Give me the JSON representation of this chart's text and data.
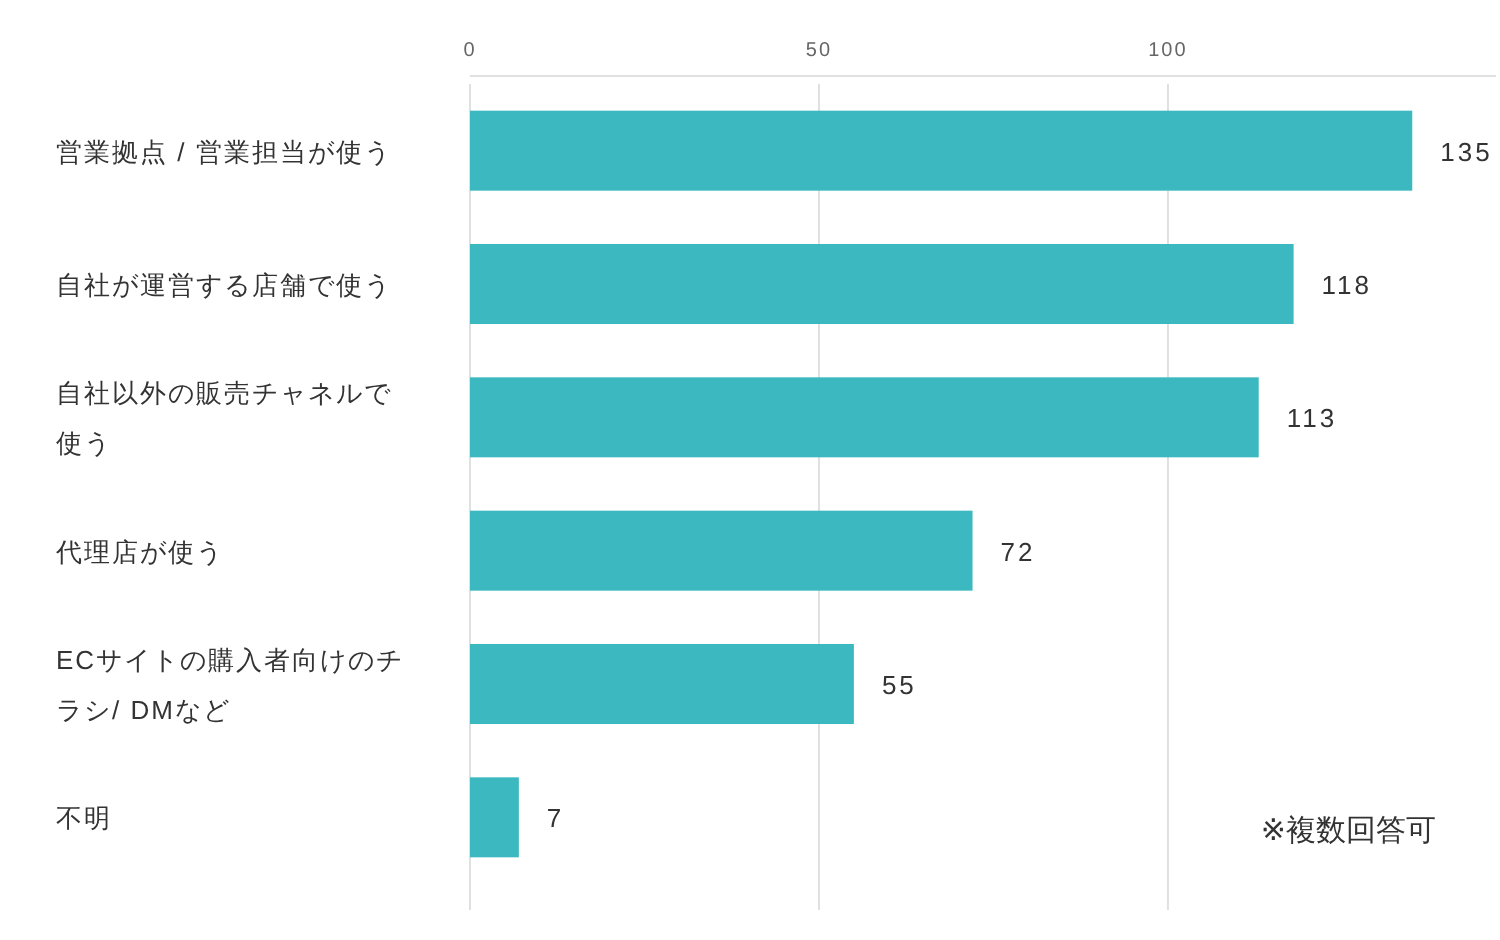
{
  "chart_data": {
    "type": "bar",
    "orientation": "horizontal",
    "categories": [
      "営業拠点 / 営業担当が使う",
      "自社が運営する店舗で使う",
      "自社以外の販売チャネルで使う",
      "代理店が使う",
      "ECサイトの購入者向けのチラシ/ DMなど",
      "不明"
    ],
    "values": [
      135,
      118,
      113,
      72,
      55,
      7
    ],
    "color": "#3bb8c0",
    "xlim": [
      0,
      147
    ],
    "xticks": [
      0,
      50,
      100
    ],
    "grid": "x",
    "data_labels": true,
    "annotations": [
      "※複数回答可"
    ]
  }
}
